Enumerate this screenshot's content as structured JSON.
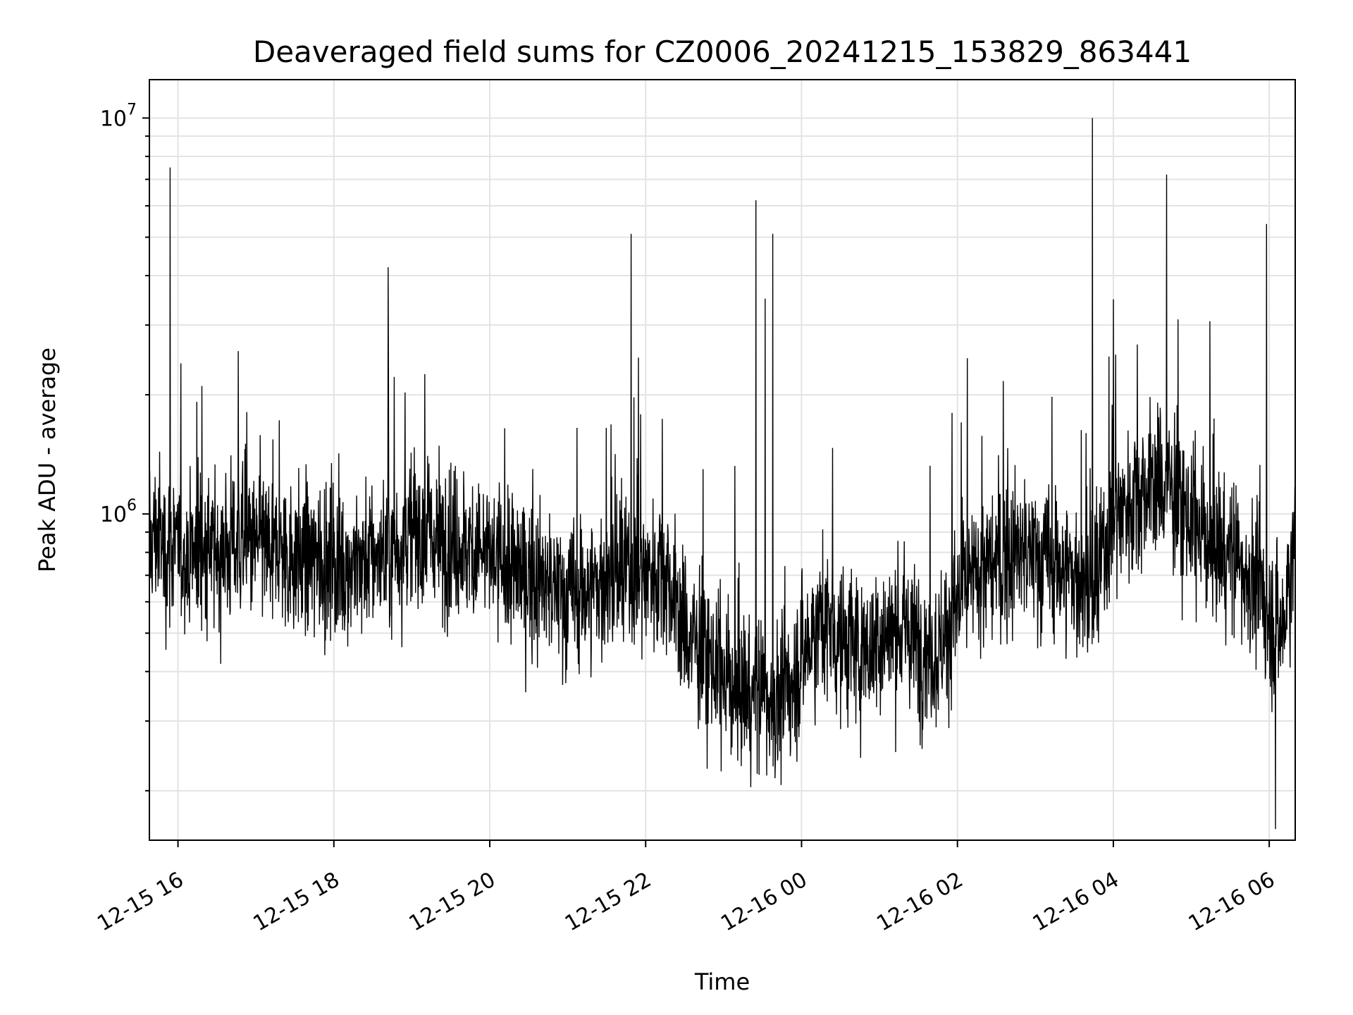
{
  "chart_data": {
    "type": "line",
    "title": "Deaveraged field sums for CZ0006_20241215_153829_863441",
    "xlabel": "Time",
    "ylabel": "Peak ADU - average",
    "xscale": "time",
    "yscale": "log",
    "xlim": [
      "2024-12-15 15:38",
      "2024-12-16 06:20"
    ],
    "ylim": [
      150000,
      12500000
    ],
    "x_ticks": [
      "12-15 16",
      "12-15 18",
      "12-15 20",
      "12-15 22",
      "12-16 00",
      "12-16 02",
      "12-16 04",
      "12-16 06"
    ],
    "y_ticks": [
      {
        "base": "10",
        "exp": "6",
        "value": 1000000
      },
      {
        "base": "10",
        "exp": "7",
        "value": 10000000
      }
    ],
    "grid": true,
    "series": [
      {
        "color": "#000000",
        "x": [
          "2024-12-15 15:38",
          "2024-12-15 15:45",
          "2024-12-15 15:50",
          "2024-12-15 15:55",
          "2024-12-15 16:00",
          "2024-12-15 16:15",
          "2024-12-15 16:30",
          "2024-12-15 16:45",
          "2024-12-15 17:00",
          "2024-12-15 17:15",
          "2024-12-15 17:30",
          "2024-12-15 17:45",
          "2024-12-15 18:00",
          "2024-12-15 18:15",
          "2024-12-15 18:30",
          "2024-12-15 18:45",
          "2024-12-15 19:00",
          "2024-12-15 19:15",
          "2024-12-15 19:30",
          "2024-12-15 19:45",
          "2024-12-15 20:00",
          "2024-12-15 20:15",
          "2024-12-15 20:30",
          "2024-12-15 20:45",
          "2024-12-15 21:00",
          "2024-12-15 21:15",
          "2024-12-15 21:30",
          "2024-12-15 21:45",
          "2024-12-15 22:00",
          "2024-12-15 22:15",
          "2024-12-15 22:30",
          "2024-12-15 22:45",
          "2024-12-15 23:00",
          "2024-12-15 23:15",
          "2024-12-15 23:30",
          "2024-12-15 23:45",
          "2024-12-16 00:00",
          "2024-12-16 00:15",
          "2024-12-16 00:30",
          "2024-12-16 00:45",
          "2024-12-16 01:00",
          "2024-12-16 01:15",
          "2024-12-16 01:30",
          "2024-12-16 01:45",
          "2024-12-16 02:00",
          "2024-12-16 02:15",
          "2024-12-16 02:30",
          "2024-12-16 02:45",
          "2024-12-16 03:00",
          "2024-12-16 03:15",
          "2024-12-16 03:30",
          "2024-12-16 03:45",
          "2024-12-16 04:00",
          "2024-12-16 04:15",
          "2024-12-16 04:30",
          "2024-12-16 04:45",
          "2024-12-16 05:00",
          "2024-12-16 05:15",
          "2024-12-16 05:30",
          "2024-12-16 05:45",
          "2024-12-16 06:00",
          "2024-12-16 06:10",
          "2024-12-16 06:20"
        ],
        "y": [
          850000,
          900000,
          800000,
          850000,
          780000,
          820000,
          800000,
          850000,
          830000,
          800000,
          780000,
          770000,
          760000,
          750000,
          780000,
          800000,
          900000,
          880000,
          850000,
          820000,
          780000,
          720000,
          700000,
          650000,
          620000,
          640000,
          680000,
          700000,
          720000,
          730000,
          500000,
          450000,
          380000,
          360000,
          350000,
          330000,
          430000,
          550000,
          480000,
          450000,
          480000,
          520000,
          470000,
          450000,
          600000,
          700000,
          750000,
          800000,
          780000,
          750000,
          700000,
          620000,
          1000000,
          1100000,
          1200000,
          1150000,
          950000,
          850000,
          800000,
          700000,
          550000,
          500000,
          900000
        ]
      }
    ],
    "spikes": [
      {
        "x": "2024-12-15 15:54",
        "y": 7500000
      },
      {
        "x": "2024-12-15 18:42",
        "y": 4200000
      },
      {
        "x": "2024-12-15 21:49",
        "y": 5100000
      },
      {
        "x": "2024-12-15 23:25",
        "y": 6200000
      },
      {
        "x": "2024-12-15 23:38",
        "y": 5100000
      },
      {
        "x": "2024-12-15 23:32",
        "y": 3500000
      },
      {
        "x": "2024-12-16 03:44",
        "y": 10000000
      },
      {
        "x": "2024-12-16 04:41",
        "y": 7200000
      },
      {
        "x": "2024-12-16 05:58",
        "y": 5400000
      },
      {
        "x": "2024-12-16 06:05",
        "y": 160000
      }
    ]
  }
}
